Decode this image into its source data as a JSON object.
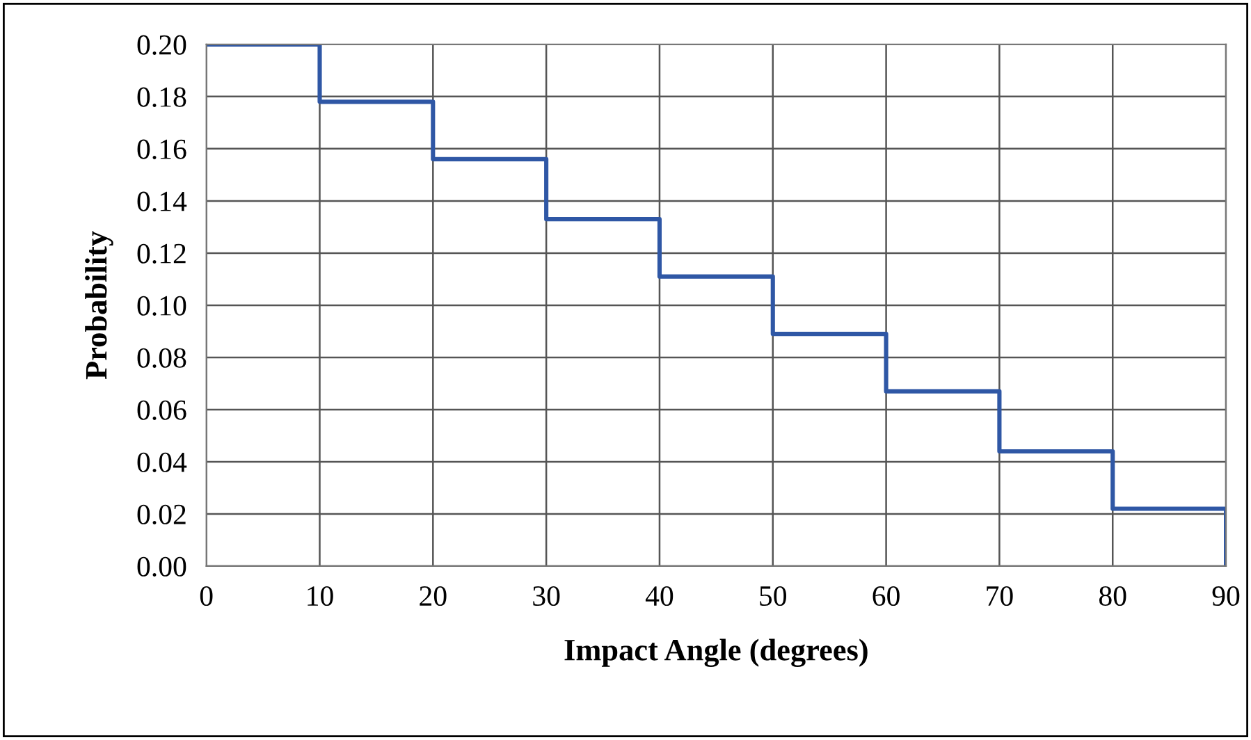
{
  "chart_data": {
    "type": "step",
    "xlabel": "Impact Angle (degrees)",
    "ylabel": "Probability",
    "x": [
      0,
      10,
      20,
      30,
      40,
      50,
      60,
      70,
      80,
      90
    ],
    "series": [
      {
        "color": "#2f57a5",
        "values": [
          0.2,
          0.178,
          0.156,
          0.133,
          0.111,
          0.089,
          0.067,
          0.044,
          0.022,
          0.0
        ]
      }
    ],
    "xlim": [
      0,
      90
    ],
    "xticks": [
      0,
      10,
      20,
      30,
      40,
      50,
      60,
      70,
      80,
      90
    ],
    "ylim": [
      0,
      0.2
    ],
    "yticks": [
      {
        "value": 0,
        "label": "0.00"
      },
      {
        "value": 0.02,
        "label": "0.02"
      },
      {
        "value": 0.04,
        "label": "0.04"
      },
      {
        "value": 0.06,
        "label": "0.06"
      },
      {
        "value": 0.08,
        "label": "0.08"
      },
      {
        "value": 0.1,
        "label": "0.10"
      },
      {
        "value": 0.12,
        "label": "0.12"
      },
      {
        "value": 0.14,
        "label": "0.14"
      },
      {
        "value": 0.16,
        "label": "0.16"
      },
      {
        "value": 0.18,
        "label": "0.18"
      },
      {
        "value": 0.2,
        "label": "0.20"
      }
    ],
    "grid": true,
    "legend": false
  }
}
